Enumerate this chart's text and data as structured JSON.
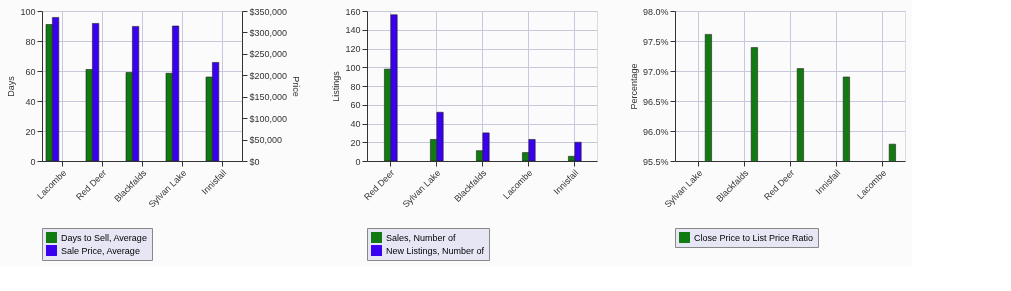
{
  "chart_data": [
    {
      "type": "bar",
      "categories": [
        "Lacombe",
        "Red Deer",
        "Blackfalds",
        "Sylvan Lake",
        "Innisfail"
      ],
      "ylabel": "Days",
      "y2label": "Price",
      "series": [
        {
          "name": "Days to Sell, Average",
          "color": "#117a11",
          "values": [
            91,
            61,
            59,
            58.5,
            56
          ]
        },
        {
          "name": "Sale Price, Average",
          "color": "#3a00f0",
          "values": [
            335000,
            321000,
            314000,
            315000,
            230000
          ],
          "axis": "y2"
        }
      ],
      "ylim": [
        0,
        100
      ],
      "yticks": [
        0,
        20,
        40,
        60,
        80,
        100
      ],
      "y2lim": [
        0,
        350000
      ],
      "y2ticks": [
        {
          "value": 0,
          "label": "$0"
        },
        {
          "value": 50000,
          "label": "$50,000"
        },
        {
          "value": 100000,
          "label": "$100,000"
        },
        {
          "value": 150000,
          "label": "$150,000"
        },
        {
          "value": 200000,
          "label": "$200,000"
        },
        {
          "value": 250000,
          "label": "$250,000"
        },
        {
          "value": 300000,
          "label": "$300,000"
        },
        {
          "value": 350000,
          "label": "$350,000"
        }
      ],
      "grid": true,
      "legend": "bottom"
    },
    {
      "type": "bar",
      "categories": [
        "Red Deer",
        "Sylvan Lake",
        "Blackfalds",
        "Lacombe",
        "Innisfail"
      ],
      "ylabel": "Listings",
      "series": [
        {
          "name": "Sales, Number of",
          "color": "#117a11",
          "values": [
            98,
            23,
            11,
            9,
            5
          ]
        },
        {
          "name": "New Listings, Number of",
          "color": "#3a00f0",
          "values": [
            156,
            52,
            30,
            23,
            20
          ]
        }
      ],
      "ylim": [
        0,
        160
      ],
      "yticks": [
        0,
        20,
        40,
        60,
        80,
        100,
        120,
        140,
        160
      ],
      "grid": true,
      "legend": "bottom"
    },
    {
      "type": "bar",
      "categories": [
        "Sylvan Lake",
        "Blackfalds",
        "Red Deer",
        "Innisfail",
        "Lacombe"
      ],
      "ylabel": "Percentage",
      "series": [
        {
          "name": "Close Price to List Price Ratio",
          "color": "#117a11",
          "values": [
            97.61,
            97.39,
            97.04,
            96.9,
            95.78
          ]
        }
      ],
      "ylim": [
        95.5,
        98
      ],
      "yticks": [
        {
          "value": 95.5,
          "label": "95.5%"
        },
        {
          "value": 96,
          "label": "96.0%"
        },
        {
          "value": 96.5,
          "label": "96.5%"
        },
        {
          "value": 97,
          "label": "97.0%"
        },
        {
          "value": 97.5,
          "label": "97.5%"
        },
        {
          "value": 98,
          "label": "98.0%"
        }
      ],
      "grid": true,
      "legend": "bottom"
    }
  ]
}
